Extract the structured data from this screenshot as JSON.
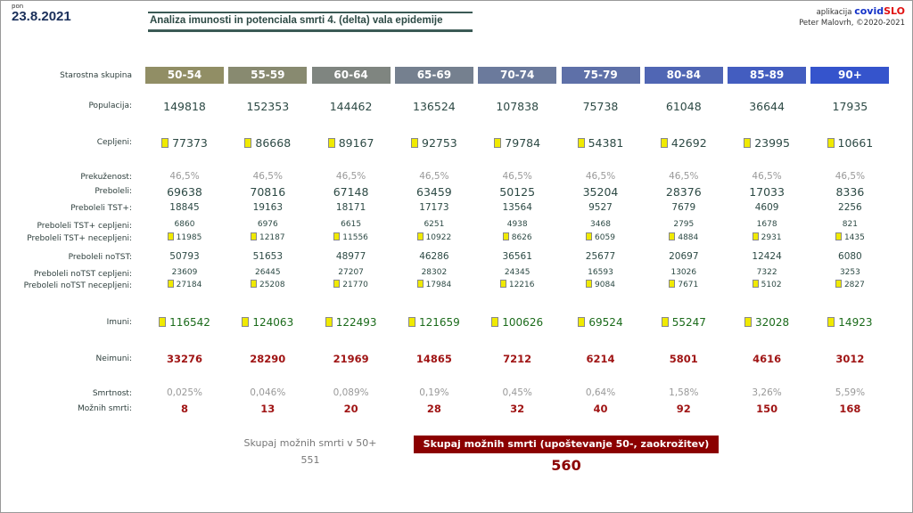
{
  "header": {
    "day": "pon",
    "date": "23.8.2021",
    "title": "Analiza imunosti in potenciala smrti 4. (delta) vala epidemije",
    "app_prefix": "aplikacija",
    "app_name_a": "covid",
    "app_name_b": "SLO",
    "author": "Peter Malovrh, ©2020-2021"
  },
  "colors": {
    "groups": [
      "#918e65",
      "#888a70",
      "#7f8580",
      "#75808f",
      "#6b7a9c",
      "#5e70a8",
      "#5066b4",
      "#435dc0",
      "#3554cc"
    ],
    "marker": "#f0ea00",
    "dark_red": "#8b0000"
  },
  "groups": [
    "50-54",
    "55-59",
    "60-64",
    "65-69",
    "70-74",
    "75-79",
    "80-84",
    "85-89",
    "90+"
  ],
  "rows": [
    {
      "key": "pop",
      "label": "Populacija:",
      "style": "big",
      "marker": false,
      "values": [
        "149818",
        "152353",
        "144462",
        "136524",
        "107838",
        "75738",
        "61048",
        "36644",
        "17935"
      ]
    },
    {
      "key": "ceplj",
      "label": "Cepljeni:",
      "style": "big",
      "marker": true,
      "values": [
        "77373",
        "86668",
        "89167",
        "92753",
        "79784",
        "54381",
        "42692",
        "23995",
        "10661"
      ]
    },
    {
      "key": "prekuz",
      "label": "Prekuženost:",
      "style": "gray",
      "marker": false,
      "values": [
        "46,5%",
        "46,5%",
        "46,5%",
        "46,5%",
        "46,5%",
        "46,5%",
        "46,5%",
        "46,5%",
        "46,5%"
      ]
    },
    {
      "key": "preb",
      "label": "Preboleli:",
      "style": "big",
      "marker": false,
      "values": [
        "69638",
        "70816",
        "67148",
        "63459",
        "50125",
        "35204",
        "28376",
        "17033",
        "8336"
      ]
    },
    {
      "key": "tst",
      "label": "Preboleli TST+:",
      "style": "",
      "marker": false,
      "values": [
        "18845",
        "19163",
        "18171",
        "17173",
        "13564",
        "9527",
        "7679",
        "4609",
        "2256"
      ]
    },
    {
      "key": "tstc",
      "label": "Preboleli TST+ cepljeni:",
      "style": "sm",
      "marker": false,
      "values": [
        "6860",
        "6976",
        "6615",
        "6251",
        "4938",
        "3468",
        "2795",
        "1678",
        "821"
      ]
    },
    {
      "key": "tstn",
      "label": "Preboleli TST+ necepljeni:",
      "style": "sm",
      "marker": true,
      "values": [
        "11985",
        "12187",
        "11556",
        "10922",
        "8626",
        "6059",
        "4884",
        "2931",
        "1435"
      ]
    },
    {
      "key": "notst",
      "label": "Preboleli noTST:",
      "style": "",
      "marker": false,
      "values": [
        "50793",
        "51653",
        "48977",
        "46286",
        "36561",
        "25677",
        "20697",
        "12424",
        "6080"
      ]
    },
    {
      "key": "notstc",
      "label": "Preboleli noTST cepljeni:",
      "style": "sm",
      "marker": false,
      "values": [
        "23609",
        "26445",
        "27207",
        "28302",
        "24345",
        "16593",
        "13026",
        "7322",
        "3253"
      ]
    },
    {
      "key": "notstn",
      "label": "Preboleli noTST necepljeni:",
      "style": "sm",
      "marker": true,
      "values": [
        "27184",
        "25208",
        "21770",
        "17984",
        "12216",
        "9084",
        "7671",
        "5102",
        "2827"
      ]
    },
    {
      "key": "imuni",
      "label": "Imuni:",
      "style": "grn-b",
      "marker": true,
      "values": [
        "116542",
        "124063",
        "122493",
        "121659",
        "100626",
        "69524",
        "55247",
        "32028",
        "14923"
      ]
    },
    {
      "key": "neimuni",
      "label": "Neimuni:",
      "style": "red",
      "marker": false,
      "values": [
        "33276",
        "28290",
        "21969",
        "14865",
        "7212",
        "6214",
        "5801",
        "4616",
        "3012"
      ]
    },
    {
      "key": "smrt",
      "label": "Smrtnost:",
      "style": "gray",
      "marker": false,
      "values": [
        "0,025%",
        "0,046%",
        "0,089%",
        "0,19%",
        "0,45%",
        "0,64%",
        "1,58%",
        "3,26%",
        "5,59%"
      ]
    },
    {
      "key": "moz",
      "label": "Možnih smrti:",
      "style": "red",
      "marker": false,
      "values": [
        "8",
        "13",
        "20",
        "28",
        "32",
        "40",
        "92",
        "150",
        "168"
      ]
    }
  ],
  "group_label": "Starostna skupina",
  "totals": {
    "label_50": "Skupaj možnih smrti v 50+",
    "value_50": "551",
    "label_all": "Skupaj možnih smrti (upoštevanje 50-, zaokrožitev)",
    "value_all": "560"
  }
}
